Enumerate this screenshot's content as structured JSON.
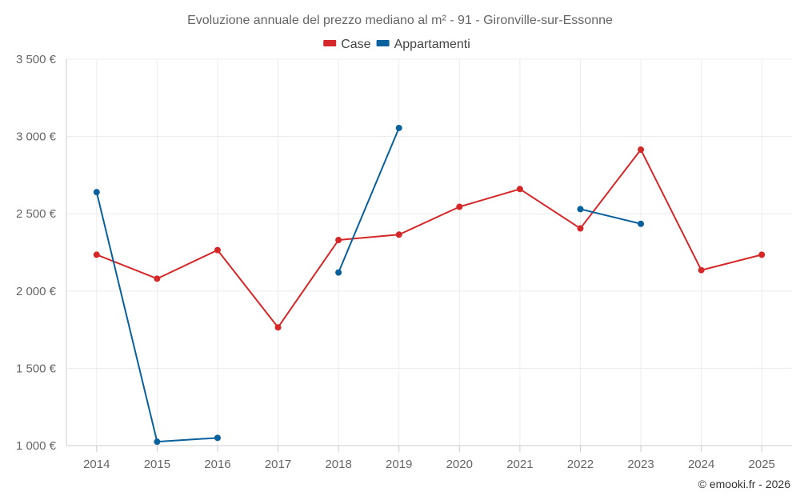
{
  "chart_data": {
    "type": "line",
    "title": "Evoluzione annuale del prezzo mediano al m² - 91 - Gironville-sur-Essonne",
    "categories": [
      "2014",
      "2015",
      "2016",
      "2017",
      "2018",
      "2019",
      "2020",
      "2021",
      "2022",
      "2023",
      "2024",
      "2025"
    ],
    "ylim": [
      1000,
      3500
    ],
    "yticks": [
      1000,
      1500,
      2000,
      2500,
      3000,
      3500
    ],
    "ytick_labels": [
      "1 000 €",
      "1 500 €",
      "2 000 €",
      "2 500 €",
      "3 000 €",
      "3 500 €"
    ],
    "series": [
      {
        "name": "Case",
        "color": "#d62728",
        "values": [
          2235,
          2080,
          2265,
          1765,
          2330,
          2365,
          2545,
          2660,
          2405,
          2915,
          2135,
          2235
        ]
      },
      {
        "name": "Appartamenti",
        "color": "#08609c",
        "values": [
          2640,
          1025,
          1050,
          null,
          2120,
          3055,
          null,
          null,
          2530,
          2435,
          null,
          null
        ]
      }
    ],
    "legend_position": "top-center",
    "grid": true
  },
  "credit": "© emooki.fr - 2026"
}
